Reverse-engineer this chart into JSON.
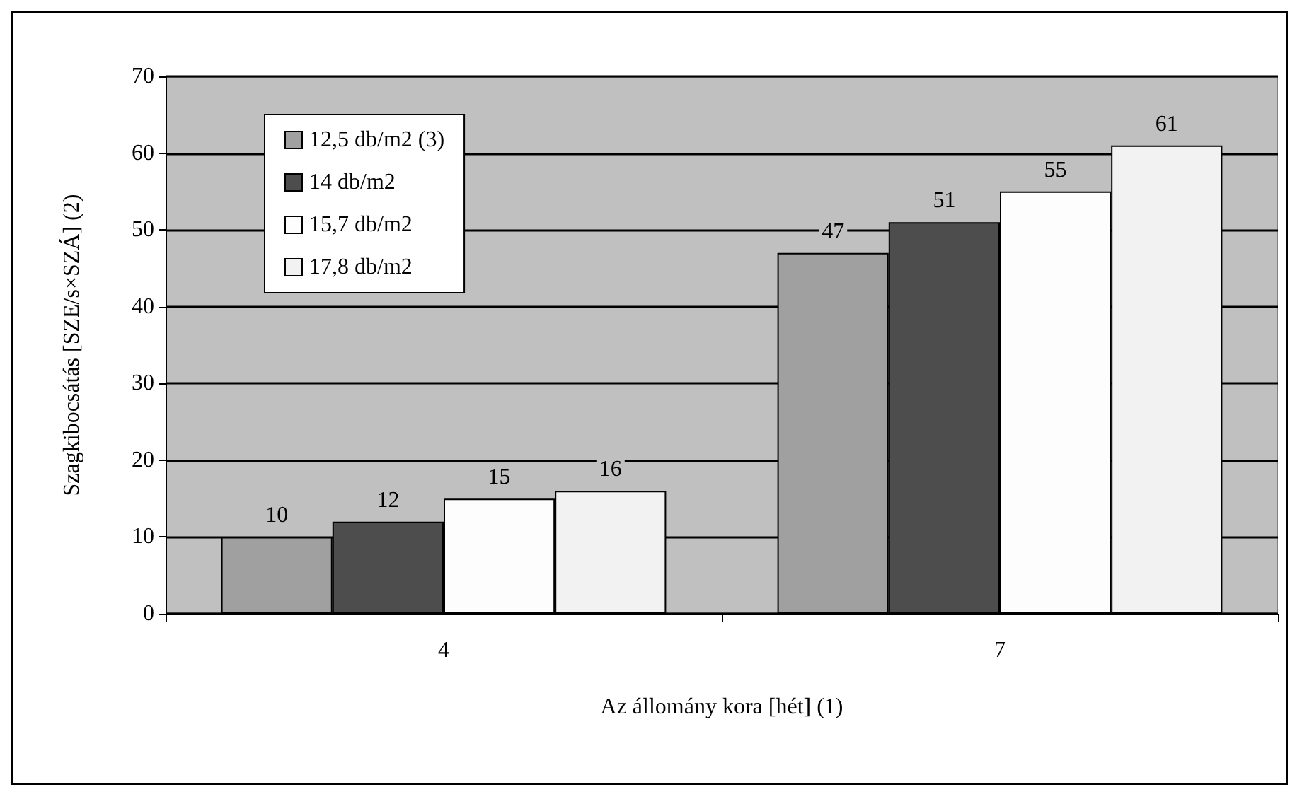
{
  "chart_data": {
    "type": "bar",
    "xlabel": "Az állomány kora [hét] (1)",
    "ylabel": "Szagkibocsátás [SZE/s×SZÁ] (2)",
    "categories": [
      "4",
      "7"
    ],
    "series": [
      {
        "name": "12,5 db/m2 (3)",
        "color": "#a0a0a0",
        "values": [
          10,
          47
        ]
      },
      {
        "name": "14 db/m2",
        "color": "#4d4d4d",
        "values": [
          12,
          51
        ]
      },
      {
        "name": "15,7 db/m2",
        "color": "#fdfdfd",
        "values": [
          15,
          55
        ]
      },
      {
        "name": "17,8 db/m2",
        "color": "#f2f2f2",
        "values": [
          16,
          61
        ]
      }
    ],
    "ylim": [
      0,
      70
    ],
    "yticks": [
      0,
      10,
      20,
      30,
      40,
      50,
      60,
      70
    ],
    "grid": "y",
    "legend": "top left",
    "data_labels": true
  }
}
